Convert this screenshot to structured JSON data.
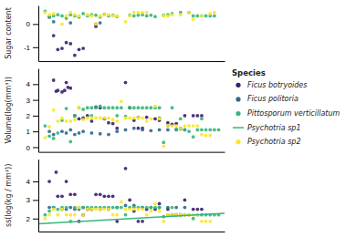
{
  "chart_data": [
    {
      "type": "scatter",
      "ylabel": "Sugar content",
      "xlim": [
        5,
        225
      ],
      "ylim": [
        -1.6,
        0.8
      ],
      "yticks": [
        -1,
        0
      ],
      "tick_labels": "y",
      "grid": false,
      "series": [
        {
          "name": "Ficus botryoides",
          "color": "#3b1f6e",
          "x": [
            18,
            23,
            28,
            33,
            38,
            43,
            48,
            53,
            58,
            73
          ],
          "values": [
            0.3,
            -0.5,
            -1.1,
            -1.05,
            -0.8,
            -0.85,
            -1.35,
            -1.1,
            -1.05,
            -0.1
          ]
        },
        {
          "name": "Ficus politoria",
          "color": "#31688e",
          "x": [
            23,
            43,
            73,
            78
          ],
          "values": [
            0.1,
            0.05,
            0.0,
            0.05
          ]
        },
        {
          "name": "Pittosporum verticillatum",
          "color": "#35b779",
          "x": [
            13,
            18,
            23,
            28,
            33,
            38,
            43,
            48,
            53,
            58,
            63,
            68,
            73,
            78,
            83,
            88,
            93,
            98,
            113,
            118,
            123,
            128,
            133,
            138,
            143,
            153,
            158,
            163,
            173,
            183,
            188,
            193,
            198,
            203,
            208,
            213
          ],
          "values": [
            0.55,
            0.3,
            0.35,
            0.4,
            0.35,
            0.25,
            0.4,
            0.35,
            0.3,
            0.45,
            0.35,
            0.4,
            0.38,
            0.3,
            0.42,
            0.35,
            0.38,
            0.32,
            0.38,
            0.35,
            0.38,
            0.4,
            0.35,
            0.38,
            0.32,
            0.38,
            0.4,
            0.45,
            0.5,
            0.5,
            0.35,
            0.35,
            0.35,
            0.35,
            0.35,
            0.35
          ]
        },
        {
          "name": "Psychotria sp2",
          "color": "#fde725",
          "x": [
            13,
            18,
            23,
            33,
            38,
            43,
            48,
            53,
            63,
            68,
            73,
            78,
            83,
            88,
            93,
            98,
            108,
            113,
            118,
            123,
            128,
            133,
            153,
            158,
            163,
            173,
            183,
            188,
            198,
            208,
            213
          ],
          "values": [
            0.5,
            0.4,
            0.45,
            0.0,
            0.35,
            0.5,
            0.4,
            0.35,
            0.4,
            0.35,
            0.0,
            0.35,
            0.4,
            0.4,
            0.35,
            0.35,
            0.1,
            0.35,
            0.5,
            0.5,
            0.5,
            0.5,
            0.35,
            0.35,
            0.4,
            0.4,
            0.5,
            0.2,
            0.35,
            0.45,
            0.5
          ]
        }
      ]
    },
    {
      "type": "scatter",
      "ylabel": "Volume(log(mm³))",
      "xlim": [
        5,
        225
      ],
      "ylim": [
        -0.3,
        5.0
      ],
      "yticks": [
        0,
        1,
        2,
        3,
        4
      ],
      "tick_labels": "y",
      "grid": false,
      "legend": "right",
      "legend_title": "Species",
      "series": [
        {
          "name": "Ficus botryoides",
          "color": "#3b1f6e",
          "x": [
            23,
            26,
            28,
            33,
            36,
            38,
            40,
            43,
            48,
            53,
            58,
            63,
            68,
            73,
            78,
            83,
            88,
            93,
            98,
            108,
            113,
            118,
            123,
            128,
            133,
            143,
            148,
            158,
            163,
            168,
            173,
            178,
            188,
            193,
            198
          ],
          "values": [
            4.25,
            3.55,
            3.6,
            3.5,
            3.6,
            4.1,
            3.8,
            3.75,
            2.0,
            1.8,
            1.85,
            2.0,
            1.65,
            2.55,
            2.5,
            1.8,
            1.55,
            1.5,
            1.2,
            4.1,
            2.5,
            1.7,
            1.2,
            1.2,
            1.9,
            1.8,
            1.7,
            1.55,
            1.45,
            1.5,
            1.2,
            2.0,
            2.0,
            2.0,
            2.0
          ]
        },
        {
          "name": "Ficus politoria",
          "color": "#31688e",
          "x": [
            18,
            23,
            33,
            38,
            43,
            48,
            53,
            58,
            68,
            78,
            88,
            98,
            108,
            118,
            128,
            138,
            148,
            158,
            168,
            178
          ],
          "values": [
            1.0,
            0.8,
            1.0,
            0.9,
            1.1,
            0.8,
            0.9,
            1.0,
            0.9,
            0.85,
            0.8,
            1.0,
            1.1,
            1.2,
            1.1,
            1.05,
            1.1,
            1.1,
            1.1,
            1.1
          ]
        },
        {
          "name": "Pittosporum verticillatum",
          "color": "#35b779",
          "x": [
            13,
            18,
            23,
            28,
            33,
            38,
            43,
            48,
            53,
            58,
            63,
            68,
            73,
            78,
            83,
            88,
            93,
            98,
            103,
            108,
            113,
            118,
            123,
            128,
            133,
            138,
            143,
            148,
            153,
            158,
            163,
            168,
            173,
            178,
            183,
            188,
            193,
            198,
            203,
            208,
            213,
            218
          ],
          "values": [
            1.35,
            0.7,
            0.55,
            0.9,
            1.7,
            2.45,
            0.35,
            2.0,
            2.5,
            2.4,
            2.5,
            2.5,
            2.5,
            2.6,
            2.5,
            2.5,
            2.5,
            2.5,
            2.5,
            1.95,
            2.5,
            2.5,
            2.5,
            2.5,
            2.5,
            2.5,
            2.5,
            2.5,
            0.3,
            1.35,
            2.5,
            1.15,
            1.15,
            1.1,
            1.0,
            0.65,
            1.1,
            1.1,
            1.1,
            1.1,
            1.1,
            1.1
          ]
        },
        {
          "name": "Psychotria sp1",
          "color": "#35b779",
          "x": [
            68,
            98,
            123,
            148,
            173,
            198
          ],
          "values": [
            2.0,
            2.0,
            1.9,
            1.85,
            1.8,
            1.8
          ]
        },
        {
          "name": "Psychotria sp2",
          "color": "#fde725",
          "x": [
            13,
            18,
            23,
            28,
            33,
            38,
            43,
            48,
            53,
            58,
            63,
            68,
            73,
            78,
            83,
            88,
            93,
            98,
            103,
            108,
            113,
            118,
            123,
            128,
            133,
            138,
            143,
            148,
            153,
            158,
            163,
            168,
            173,
            178,
            183,
            188,
            193,
            198,
            203,
            208
          ],
          "values": [
            0.6,
            1.3,
            2.35,
            1.65,
            1.85,
            1.65,
            1.65,
            1.75,
            2.5,
            1.75,
            1.85,
            1.85,
            1.85,
            1.85,
            1.85,
            1.85,
            1.75,
            1.65,
            2.9,
            1.85,
            1.85,
            1.85,
            1.85,
            1.85,
            1.65,
            1.8,
            2.6,
            1.8,
            0.05,
            1.35,
            1.35,
            1.35,
            1.2,
            1.35,
            1.35,
            1.35,
            1.35,
            0.8,
            0.75,
            0.75
          ]
        }
      ]
    },
    {
      "type": "scatter",
      "ylabel": "ss(log(kg / mm²))",
      "xlim": [
        5,
        225
      ],
      "ylim": [
        1.3,
        5.2
      ],
      "yticks": [
        2,
        3,
        4
      ],
      "tick_labels": "y",
      "grid": false,
      "series": [
        {
          "name": "Ficus botryoides",
          "color": "#3b1f6e",
          "x": [
            18,
            26,
            28,
            33,
            38,
            43,
            48,
            53,
            58,
            63,
            68,
            73,
            78,
            83,
            88,
            93,
            98,
            108,
            113,
            118,
            123,
            128,
            133,
            143,
            148,
            158,
            163,
            168,
            173,
            178,
            188,
            193,
            198
          ],
          "values": [
            4.0,
            4.5,
            3.2,
            3.2,
            4.0,
            3.3,
            3.3,
            1.85,
            2.2,
            2.5,
            2.5,
            3.3,
            3.3,
            3.2,
            3.2,
            3.2,
            1.85,
            4.7,
            3.0,
            2.4,
            1.85,
            1.85,
            2.5,
            2.5,
            2.8,
            2.5,
            2.2,
            2.2,
            2.2,
            3.0,
            2.5,
            2.5,
            2.5
          ]
        },
        {
          "name": "Ficus politoria",
          "color": "#31688e",
          "x": [
            18,
            23,
            33,
            38,
            43,
            48,
            53,
            58,
            68,
            78,
            88,
            98,
            108,
            118,
            128,
            138,
            148,
            158,
            168,
            178
          ],
          "values": [
            2.6,
            2.6,
            2.5,
            2.5,
            2.6,
            2.5,
            2.5,
            2.6,
            2.5,
            2.5,
            2.5,
            2.6,
            2.7,
            2.7,
            2.6,
            2.6,
            2.6,
            2.6,
            2.6,
            2.6
          ]
        },
        {
          "name": "Pittosporum verticillatum",
          "color": "#35b779",
          "x": [
            13,
            18,
            23,
            28,
            33,
            38,
            43,
            48,
            53,
            58,
            63,
            68,
            73,
            78,
            83,
            88,
            93,
            98,
            103,
            108,
            113,
            118,
            123,
            128,
            133,
            138,
            143,
            148,
            153,
            158,
            163,
            168,
            173,
            178,
            183,
            188,
            193,
            198,
            203,
            208,
            213,
            218
          ],
          "values": [
            2.2,
            2.4,
            2.6,
            2.5,
            2.6,
            2.6,
            1.85,
            2.6,
            2.6,
            2.6,
            2.6,
            2.6,
            2.6,
            2.6,
            2.6,
            2.6,
            2.6,
            2.6,
            2.6,
            2.2,
            2.6,
            2.6,
            2.6,
            2.6,
            2.6,
            2.6,
            2.6,
            2.6,
            2.1,
            2.2,
            2.6,
            2.2,
            2.2,
            2.2,
            2.2,
            2.0,
            2.2,
            2.2,
            2.2,
            2.2,
            2.2,
            2.2
          ]
        },
        {
          "name": "Psychotria sp1",
          "color": "#35b779",
          "type": "line",
          "x": [
            5,
            225
          ],
          "values": [
            1.72,
            2.28
          ]
        },
        {
          "name": "Psychotria sp2",
          "color": "#fde725",
          "x": [
            13,
            18,
            23,
            28,
            33,
            38,
            43,
            48,
            53,
            58,
            63,
            68,
            73,
            78,
            83,
            88,
            93,
            98,
            103,
            108,
            113,
            118,
            123,
            128,
            133,
            138,
            143,
            148,
            153,
            158,
            163,
            168,
            173,
            178,
            183,
            188,
            193,
            198,
            203,
            208
          ],
          "values": [
            2.0,
            2.2,
            2.5,
            2.2,
            2.5,
            2.2,
            2.2,
            2.2,
            2.6,
            2.2,
            2.5,
            2.5,
            2.5,
            2.5,
            2.5,
            2.5,
            2.2,
            2.2,
            2.9,
            2.5,
            2.5,
            2.5,
            2.5,
            2.5,
            2.2,
            2.4,
            2.8,
            2.4,
            1.85,
            2.2,
            2.2,
            2.2,
            2.2,
            2.2,
            2.2,
            2.2,
            2.2,
            1.85,
            1.85,
            1.85
          ]
        }
      ]
    }
  ]
}
